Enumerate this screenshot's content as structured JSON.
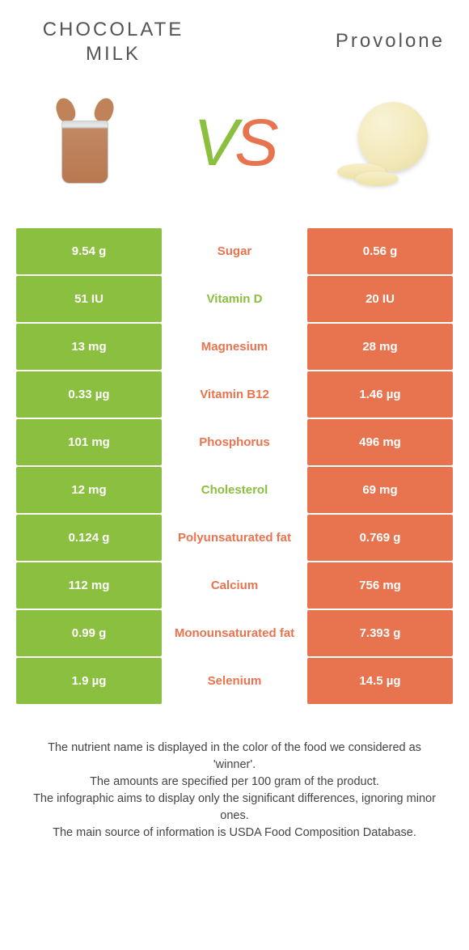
{
  "header": {
    "left_title": "CHOCOLATE\nMILK",
    "right_title": "Provolone",
    "vs_v": "V",
    "vs_s": "S"
  },
  "colors": {
    "green": "#8bbf3f",
    "orange": "#e8744f",
    "background": "#ffffff"
  },
  "rows": [
    {
      "left": "9.54 g",
      "label": "Sugar",
      "right": "0.56 g",
      "left_bg": "green",
      "right_bg": "orange",
      "label_color": "orange"
    },
    {
      "left": "51 IU",
      "label": "Vitamin D",
      "right": "20 IU",
      "left_bg": "green",
      "right_bg": "orange",
      "label_color": "green"
    },
    {
      "left": "13 mg",
      "label": "Magnesium",
      "right": "28 mg",
      "left_bg": "green",
      "right_bg": "orange",
      "label_color": "orange"
    },
    {
      "left": "0.33 µg",
      "label": "Vitamin B12",
      "right": "1.46 µg",
      "left_bg": "green",
      "right_bg": "orange",
      "label_color": "orange"
    },
    {
      "left": "101 mg",
      "label": "Phosphorus",
      "right": "496 mg",
      "left_bg": "green",
      "right_bg": "orange",
      "label_color": "orange"
    },
    {
      "left": "12 mg",
      "label": "Cholesterol",
      "right": "69 mg",
      "left_bg": "green",
      "right_bg": "orange",
      "label_color": "green"
    },
    {
      "left": "0.124 g",
      "label": "Polyunsaturated fat",
      "right": "0.769 g",
      "left_bg": "green",
      "right_bg": "orange",
      "label_color": "orange"
    },
    {
      "left": "112 mg",
      "label": "Calcium",
      "right": "756 mg",
      "left_bg": "green",
      "right_bg": "orange",
      "label_color": "orange"
    },
    {
      "left": "0.99 g",
      "label": "Monounsaturated fat",
      "right": "7.393 g",
      "left_bg": "green",
      "right_bg": "orange",
      "label_color": "orange"
    },
    {
      "left": "1.9 µg",
      "label": "Selenium",
      "right": "14.5 µg",
      "left_bg": "green",
      "right_bg": "orange",
      "label_color": "orange"
    }
  ],
  "footer": {
    "line1": "The nutrient name is displayed in the color of the food we considered as 'winner'.",
    "line2": "The amounts are specified per 100 gram of the product.",
    "line3": "The infographic aims to display only the significant differences, ignoring minor ones.",
    "line4": "The main source of information is USDA Food Composition Database."
  }
}
